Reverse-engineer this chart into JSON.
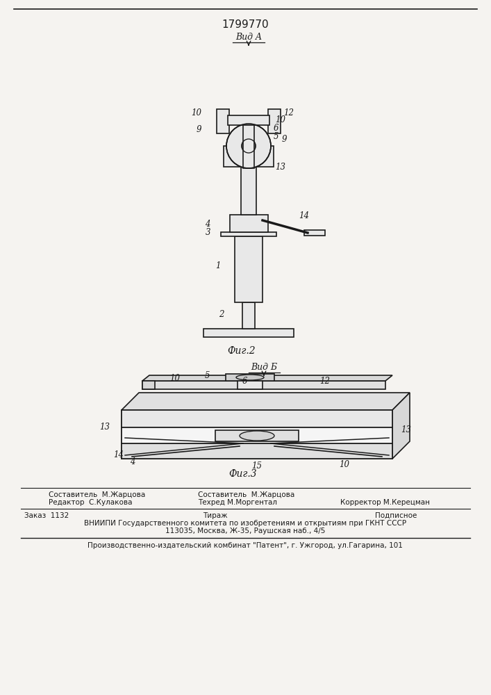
{
  "patent_number": "1799770",
  "bg_color": "#f5f3f0",
  "line_color": "#1a1a1a",
  "fig2_label": "Фиг.2",
  "fig3_label": "Фиг.3",
  "vid_a_label": "Вид A",
  "vid_b_label": "Вид Б",
  "footer_left_line1": "Редактор  С.Кулакова",
  "footer_center_line1": "Составитель  М.Жарцова",
  "footer_center_line2": "Техред М.Моргентал",
  "footer_right_line1": "Корректор М.Керецман",
  "footer_order": "Заказ  1132",
  "footer_tiraz": "Тираж",
  "footer_podpisnoe": "Подписное",
  "footer_vniipи": "ВНИИПИ Государственного комитета по изобретениям и открытиям при ГКНТ СССР",
  "footer_address": "113035, Москва, Ж-35, Раушская наб., 4/5",
  "footer_patent": "Производственно-издательский комбинат \"Патент\", г. Ужгород, ул.Гагарина, 101"
}
